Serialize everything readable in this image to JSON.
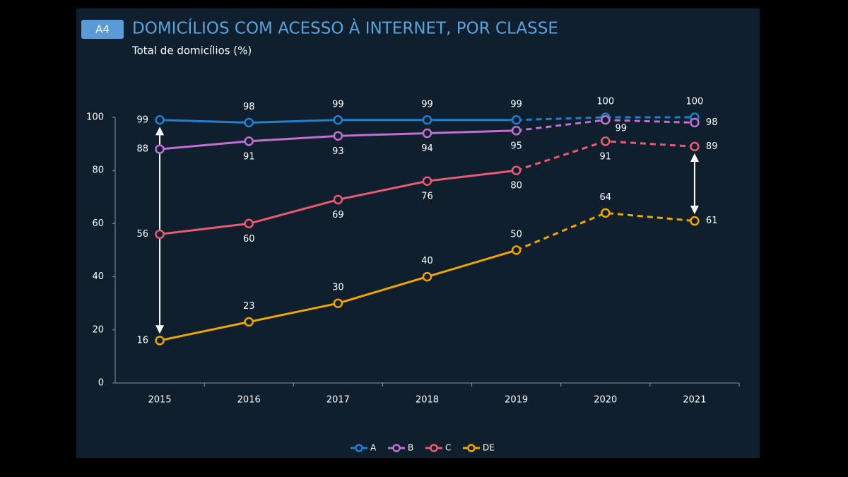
{
  "chart_data": {
    "type": "line",
    "badge": "A4",
    "title": "DOMICÍLIOS COM ACESSO À INTERNET, POR CLASSE",
    "subtitle": "Total de domicílios (%)",
    "categories": [
      "2015",
      "2016",
      "2017",
      "2018",
      "2019",
      "2020",
      "2021"
    ],
    "dash_from": "2019",
    "series": [
      {
        "name": "A",
        "color": "#1f7fd1",
        "values": [
          99,
          98,
          99,
          99,
          99,
          100,
          100
        ]
      },
      {
        "name": "B",
        "color": "#c070d0",
        "values": [
          88,
          91,
          93,
          94,
          95,
          99,
          98
        ]
      },
      {
        "name": "C",
        "color": "#ea5a73",
        "values": [
          56,
          60,
          69,
          76,
          80,
          91,
          89
        ]
      },
      {
        "name": "DE",
        "color": "#f0a500",
        "values": [
          16,
          23,
          30,
          40,
          50,
          64,
          61
        ]
      }
    ],
    "ylim": [
      0,
      100
    ],
    "yticks": [
      0,
      20,
      40,
      60,
      80,
      100
    ]
  }
}
